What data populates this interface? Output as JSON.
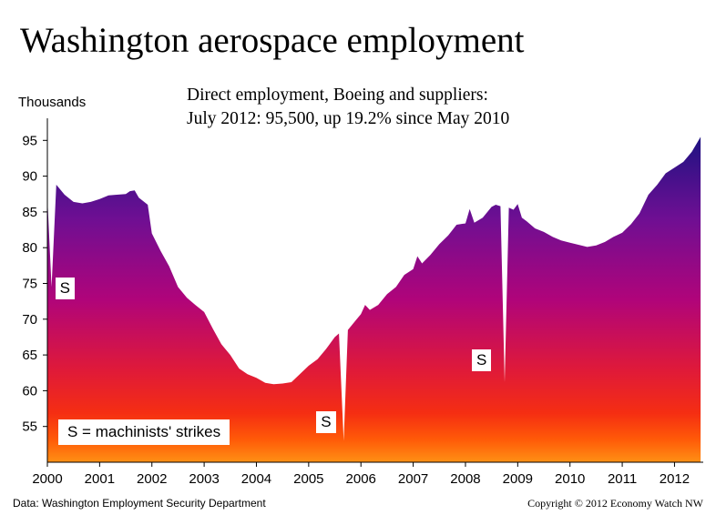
{
  "chart_data": {
    "type": "area",
    "title": "Washington aerospace employment",
    "subtitle_lines": [
      "Direct employment, Boeing and suppliers:",
      "July 2012: 95,500, up 19.2% since May 2010"
    ],
    "ylabel": "Thousands",
    "xlabel": "",
    "ylim": [
      50,
      100
    ],
    "yticks": [
      55,
      60,
      65,
      70,
      75,
      80,
      85,
      90,
      95
    ],
    "xlim": [
      2000,
      2012.55
    ],
    "xticks": [
      2000,
      2001,
      2002,
      2003,
      2004,
      2005,
      2006,
      2007,
      2008,
      2009,
      2010,
      2011,
      2012
    ],
    "grid": false,
    "gradient_colors": [
      "#1e1282",
      "#6e0f93",
      "#b0047a",
      "#e01a38",
      "#f52e12",
      "#ff5a08",
      "#ff9014"
    ],
    "series": [
      {
        "points": [
          [
            2000.0,
            87.0
          ],
          [
            2000.08,
            74.5
          ],
          [
            2000.17,
            88.8
          ],
          [
            2000.33,
            87.4
          ],
          [
            2000.5,
            86.4
          ],
          [
            2000.67,
            86.2
          ],
          [
            2000.83,
            86.4
          ],
          [
            2001.0,
            86.8
          ],
          [
            2001.17,
            87.3
          ],
          [
            2001.33,
            87.4
          ],
          [
            2001.5,
            87.5
          ],
          [
            2001.58,
            87.9
          ],
          [
            2001.67,
            88.0
          ],
          [
            2001.75,
            87.0
          ],
          [
            2001.92,
            86.0
          ],
          [
            2002.0,
            82.0
          ],
          [
            2002.17,
            79.5
          ],
          [
            2002.33,
            77.4
          ],
          [
            2002.5,
            74.5
          ],
          [
            2002.67,
            73.0
          ],
          [
            2002.83,
            72.0
          ],
          [
            2003.0,
            71.0
          ],
          [
            2003.17,
            68.6
          ],
          [
            2003.33,
            66.5
          ],
          [
            2003.5,
            65.0
          ],
          [
            2003.67,
            63.1
          ],
          [
            2003.83,
            62.3
          ],
          [
            2004.0,
            61.8
          ],
          [
            2004.17,
            61.1
          ],
          [
            2004.33,
            60.9
          ],
          [
            2004.5,
            61.0
          ],
          [
            2004.67,
            61.2
          ],
          [
            2004.83,
            62.3
          ],
          [
            2005.0,
            63.5
          ],
          [
            2005.17,
            64.4
          ],
          [
            2005.33,
            65.8
          ],
          [
            2005.5,
            67.5
          ],
          [
            2005.58,
            68.0
          ],
          [
            2005.67,
            53.0
          ],
          [
            2005.75,
            68.5
          ],
          [
            2005.92,
            70.0
          ],
          [
            2006.0,
            70.7
          ],
          [
            2006.08,
            72.0
          ],
          [
            2006.17,
            71.3
          ],
          [
            2006.33,
            72.0
          ],
          [
            2006.5,
            73.5
          ],
          [
            2006.67,
            74.5
          ],
          [
            2006.83,
            76.2
          ],
          [
            2007.0,
            77.0
          ],
          [
            2007.08,
            78.8
          ],
          [
            2007.17,
            77.8
          ],
          [
            2007.33,
            79.0
          ],
          [
            2007.5,
            80.5
          ],
          [
            2007.67,
            81.7
          ],
          [
            2007.83,
            83.2
          ],
          [
            2008.0,
            83.4
          ],
          [
            2008.08,
            85.4
          ],
          [
            2008.17,
            83.5
          ],
          [
            2008.33,
            84.2
          ],
          [
            2008.5,
            85.7
          ],
          [
            2008.58,
            86.0
          ],
          [
            2008.67,
            85.8
          ],
          [
            2008.75,
            61.2
          ],
          [
            2008.83,
            85.6
          ],
          [
            2008.92,
            85.3
          ],
          [
            2009.0,
            86.1
          ],
          [
            2009.08,
            84.2
          ],
          [
            2009.17,
            83.7
          ],
          [
            2009.33,
            82.7
          ],
          [
            2009.5,
            82.2
          ],
          [
            2009.67,
            81.5
          ],
          [
            2009.83,
            81.0
          ],
          [
            2010.0,
            80.7
          ],
          [
            2010.17,
            80.4
          ],
          [
            2010.33,
            80.1
          ],
          [
            2010.5,
            80.3
          ],
          [
            2010.67,
            80.8
          ],
          [
            2010.83,
            81.5
          ],
          [
            2011.0,
            82.1
          ],
          [
            2011.17,
            83.3
          ],
          [
            2011.33,
            84.8
          ],
          [
            2011.5,
            87.4
          ],
          [
            2011.67,
            88.8
          ],
          [
            2011.83,
            90.4
          ],
          [
            2012.0,
            91.2
          ],
          [
            2012.17,
            92.0
          ],
          [
            2012.33,
            93.4
          ],
          [
            2012.5,
            95.5
          ]
        ]
      }
    ],
    "strike_labels": [
      "S",
      "S",
      "S"
    ],
    "legend_text": "S = machinists' strikes"
  },
  "footer": {
    "source": "Data:  Washington Employment Security Department",
    "copyright": "Copyright ©  2012 Economy Watch NW"
  }
}
